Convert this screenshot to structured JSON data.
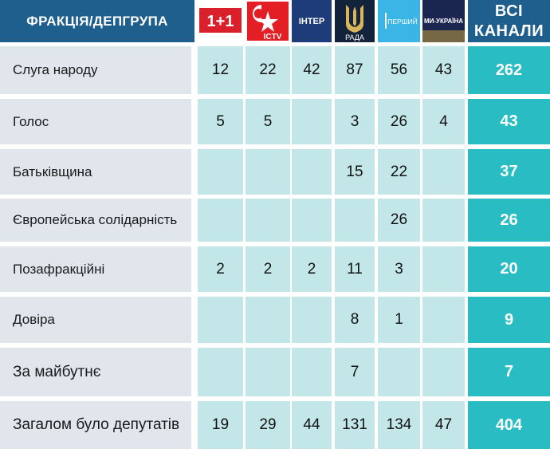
{
  "header": {
    "faction_label": "ФРАКЦІЯ/ДЕПГРУПА",
    "total_label_line1": "ВСІ",
    "total_label_line2": "КАНАЛИ"
  },
  "channels": [
    {
      "icon": "one-plus-one-logo-icon",
      "text": "1+1",
      "color": "#d9202b"
    },
    {
      "icon": "ictv-logo-icon",
      "text": "ICTV",
      "color": "#e31e24"
    },
    {
      "icon": "inter-logo-icon",
      "text": "ІНТЕР",
      "color": "#1f3c7a"
    },
    {
      "icon": "rada-logo-icon",
      "text": "РАДА",
      "color": "#14233c"
    },
    {
      "icon": "pershyi-logo-icon",
      "text": "ПЕРШИЙ",
      "color": "#3ab5e6"
    },
    {
      "icon": "my-ukraina-logo-icon",
      "text": "МИ-УКРАЇНА",
      "color": "#1a2550"
    }
  ],
  "rows": [
    {
      "faction": "Слуга народу",
      "values": [
        "12",
        "22",
        "42",
        "87",
        "56",
        "43"
      ],
      "total": "262"
    },
    {
      "faction": "Голос",
      "values": [
        "5",
        "5",
        "",
        "3",
        "26",
        "4"
      ],
      "total": "43"
    },
    {
      "faction": "Батьківщина",
      "values": [
        "",
        "",
        "",
        "15",
        "22",
        ""
      ],
      "total": "37"
    },
    {
      "faction": "Європейська солідарність",
      "values": [
        "",
        "",
        "",
        "",
        "26",
        ""
      ],
      "total": "26"
    },
    {
      "faction": "Позафракційні",
      "values": [
        "2",
        "2",
        "2",
        "11",
        "3",
        ""
      ],
      "total": "20"
    },
    {
      "faction": "Довіра",
      "values": [
        "",
        "",
        "",
        "8",
        "1",
        ""
      ],
      "total": "9"
    },
    {
      "faction": "За майбутнє",
      "values": [
        "",
        "",
        "",
        "7",
        "",
        ""
      ],
      "total": "7"
    },
    {
      "faction": "Загалом було депутатів",
      "values": [
        "19",
        "29",
        "44",
        "131",
        "134",
        "47"
      ],
      "total": "404"
    }
  ]
}
